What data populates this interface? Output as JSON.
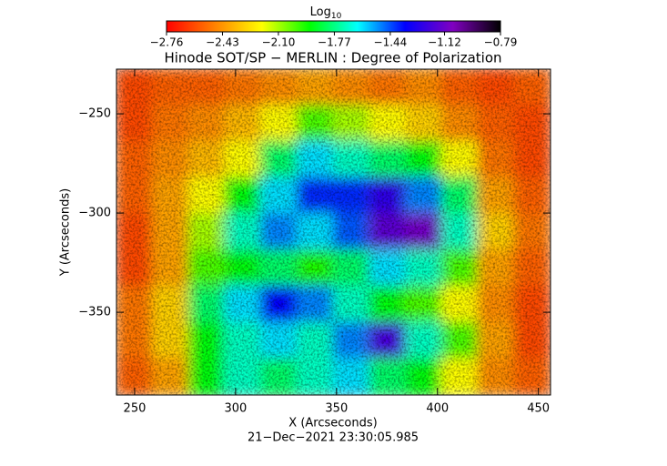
{
  "chart_data": {
    "type": "heatmap",
    "title": "Hinode SOT/SP − MERLIN : Degree of Polarization",
    "xlabel": "X (Arcseconds)",
    "ylabel": "Y (Arcseconds)",
    "footer": "21−Dec−2021 23:30:05.985",
    "colorbar_title": {
      "text": "Log",
      "subscript": "10"
    },
    "colormap": [
      "#ff0000",
      "#ff8000",
      "#ffff00",
      "#00ff00",
      "#00ffff",
      "#0000ff",
      "#8000c0",
      "#000000"
    ],
    "zlim": [
      -2.76,
      -0.79
    ],
    "zticks": [
      {
        "value": -2.76,
        "label": "−2.76"
      },
      {
        "value": -2.43,
        "label": "−2.43"
      },
      {
        "value": -2.1,
        "label": "−2.10"
      },
      {
        "value": -1.77,
        "label": "−1.77"
      },
      {
        "value": -1.44,
        "label": "−1.44"
      },
      {
        "value": -1.12,
        "label": "−1.12"
      },
      {
        "value": -0.79,
        "label": "−0.79"
      }
    ],
    "xlim": [
      241,
      456
    ],
    "ylim": [
      -391.7,
      -227.5
    ],
    "xticks": [
      250,
      300,
      350,
      400,
      450
    ],
    "yticks": [
      {
        "value": -250,
        "label": "−250"
      },
      {
        "value": -300,
        "label": "−300"
      },
      {
        "value": -350,
        "label": "−350"
      }
    ],
    "x": [
      250.0,
      267.9,
      285.8,
      303.7,
      321.6,
      339.5,
      357.5,
      375.4,
      393.3,
      411.2,
      429.1,
      447.0
    ],
    "y": [
      -236.6,
      -254.9,
      -273.1,
      -291.3,
      -309.6,
      -327.8,
      -346.1,
      -364.3,
      -382.6
    ],
    "z": [
      [
        -2.6,
        -2.55,
        -2.55,
        -2.5,
        -2.45,
        -2.4,
        -2.45,
        -2.5,
        -2.45,
        -2.55,
        -2.6,
        -2.55
      ],
      [
        -2.6,
        -2.5,
        -2.45,
        -2.35,
        -2.2,
        -2.0,
        -2.1,
        -2.2,
        -2.3,
        -2.45,
        -2.55,
        -2.6
      ],
      [
        -2.55,
        -2.45,
        -2.35,
        -2.2,
        -1.8,
        -1.6,
        -1.7,
        -1.8,
        -1.9,
        -2.2,
        -2.5,
        -2.6
      ],
      [
        -2.55,
        -2.4,
        -2.2,
        -1.9,
        -1.6,
        -1.4,
        -1.4,
        -1.25,
        -1.5,
        -1.8,
        -2.4,
        -2.55
      ],
      [
        -2.6,
        -2.4,
        -2.1,
        -1.7,
        -1.5,
        -1.6,
        -1.45,
        -1.15,
        -1.1,
        -1.7,
        -2.3,
        -2.5
      ],
      [
        -2.6,
        -2.4,
        -2.0,
        -1.9,
        -1.8,
        -1.95,
        -1.8,
        -1.6,
        -1.7,
        -2.0,
        -2.4,
        -2.55
      ],
      [
        -2.5,
        -2.3,
        -1.8,
        -1.6,
        -1.35,
        -1.5,
        -1.7,
        -1.9,
        -2.0,
        -2.2,
        -2.45,
        -2.6
      ],
      [
        -2.5,
        -2.3,
        -1.9,
        -1.7,
        -1.6,
        -1.7,
        -1.5,
        -1.2,
        -1.7,
        -2.0,
        -2.4,
        -2.6
      ],
      [
        -2.55,
        -2.4,
        -1.9,
        -1.7,
        -1.8,
        -1.7,
        -1.6,
        -1.8,
        -1.9,
        -2.2,
        -2.45,
        -2.55
      ]
    ]
  }
}
